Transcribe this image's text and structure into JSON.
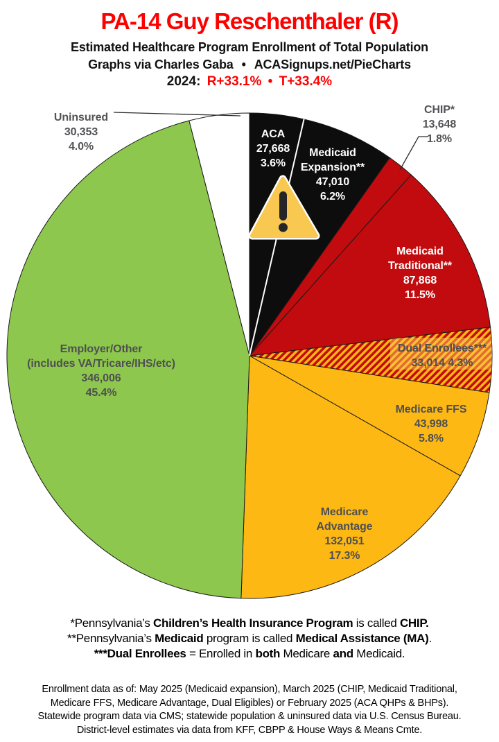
{
  "header": {
    "title": "PA-14 Guy Reschenthaler (R)",
    "subtitle": "Estimated Healthcare Program Enrollment of Total Population",
    "credit_left": "Graphs via Charles Gaba",
    "credit_bullet": "•",
    "credit_right": "ACASignups.net/PieCharts",
    "year_label": "2024:",
    "r_lean": "R+33.1%",
    "lean_bullet": "•",
    "t_lean": "T+33.4%",
    "title_color": "#fe0000",
    "lean_color": "#fe0000"
  },
  "chart_data": {
    "type": "pie",
    "title": "Estimated Healthcare Program Enrollment of Total Population",
    "direction": "clockwise",
    "start_angle_deg": 0,
    "slices": [
      {
        "label": "ACA",
        "value": "27,668",
        "value_num": 27668,
        "pct": "3.6%",
        "pct_num": 3.6,
        "color": "#0d0d0d",
        "label_style": "light"
      },
      {
        "label": "Medicaid Expansion**",
        "value": "47,010",
        "value_num": 47010,
        "pct": "6.2%",
        "pct_num": 6.2,
        "color": "#0d0d0d",
        "label_style": "light"
      },
      {
        "label": "CHIP*",
        "value": "13,648",
        "value_num": 13648,
        "pct": "1.8%",
        "pct_num": 1.8,
        "color": "#c20b0e",
        "label_style": "outside"
      },
      {
        "label": "Medicaid Traditional**",
        "value": "87,868",
        "value_num": 87868,
        "pct": "11.5%",
        "pct_num": 11.5,
        "color": "#c20b0e",
        "label_style": "light"
      },
      {
        "label": "Dual Enrollees***",
        "value": "33,014",
        "value_num": 33014,
        "pct": "4.3%",
        "pct_num": 4.3,
        "color": "hatch",
        "label_style": "dark"
      },
      {
        "label": "Medicare FFS",
        "value": "43,998",
        "value_num": 43998,
        "pct": "5.8%",
        "pct_num": 5.8,
        "color": "#fdb813",
        "label_style": "dark"
      },
      {
        "label": "Medicare Advantage",
        "value": "132,051",
        "value_num": 132051,
        "pct": "17.3%",
        "pct_num": 17.3,
        "color": "#fdb813",
        "label_style": "dark"
      },
      {
        "label": "Employer/Other",
        "sublabel": "(includes VA/Tricare/IHS/etc)",
        "value": "346,006",
        "value_num": 346006,
        "pct": "45.4%",
        "pct_num": 45.4,
        "color": "#8dc74d",
        "label_style": "dark"
      },
      {
        "label": "Uninsured",
        "value": "30,353",
        "value_num": 30353,
        "pct": "4.0%",
        "pct_num": 4.0,
        "color": "#ffffff",
        "label_style": "outside"
      }
    ],
    "hatch_colors": {
      "base": "#c20b0e",
      "stripe": "#fdb813"
    },
    "outline_color": "#1a1a1a",
    "warning_icon": {
      "fill": "#f8c850",
      "mark": "#262626",
      "border": "#ffffff"
    }
  },
  "footnotes": [
    [
      {
        "t": "*Pennsylvania’s ",
        "b": false
      },
      {
        "t": "Children’s Health Insurance Program",
        "b": true
      },
      {
        "t": " is called ",
        "b": false
      },
      {
        "t": "CHIP.",
        "b": true
      }
    ],
    [
      {
        "t": "**Pennsylvania’s ",
        "b": false
      },
      {
        "t": "Medicaid",
        "b": true
      },
      {
        "t": " program is called ",
        "b": false
      },
      {
        "t": "Medical Assistance (MA)",
        "b": true
      },
      {
        "t": ".",
        "b": false
      }
    ],
    [
      {
        "t": "***Dual Enrollees",
        "b": true
      },
      {
        "t": " = Enrolled in ",
        "b": false
      },
      {
        "t": "both",
        "b": true
      },
      {
        "t": " Medicare ",
        "b": false
      },
      {
        "t": "and",
        "b": true
      },
      {
        "t": " Medicaid.",
        "b": false
      }
    ]
  ],
  "source_lines": [
    "Enrollment data as of: May 2025 (Medicaid expansion), March 2025 (CHIP, Medicaid Traditional,",
    "Medicare FFS, Medicare Advantage, Dual Eligibles) or February 2025 (ACA QHPs & BHPs).",
    "Statewide program data via CMS; statewide population & uninsured data via U.S. Census Bureau.",
    "District-level estimates via data from KFF, CBPP & House Ways & Means Cmte."
  ]
}
